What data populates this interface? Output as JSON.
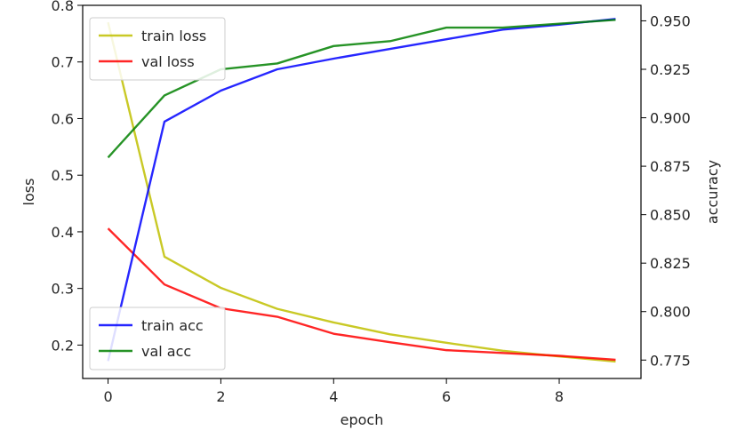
{
  "chart_data": {
    "type": "line",
    "xlabel": "epoch",
    "ylabel_left": "loss",
    "ylabel_right": "accuracy",
    "x": [
      0,
      1,
      2,
      3,
      4,
      5,
      6,
      7,
      8,
      9
    ],
    "xlim": [
      -0.45,
      9.45
    ],
    "ylim_left": [
      0.141,
      0.8
    ],
    "ylim_right": [
      0.7655,
      0.958
    ],
    "xticks": [
      0,
      2,
      4,
      6,
      8
    ],
    "xtick_labels": [
      "0",
      "2",
      "4",
      "6",
      "8"
    ],
    "yticks_left": [
      0.2,
      0.3,
      0.4,
      0.5,
      0.6,
      0.7,
      0.8
    ],
    "ytick_labels_left": [
      "0.2",
      "0.3",
      "0.4",
      "0.5",
      "0.6",
      "0.7",
      "0.8"
    ],
    "yticks_right": [
      0.775,
      0.8,
      0.825,
      0.85,
      0.875,
      0.9,
      0.925,
      0.95
    ],
    "ytick_labels_right": [
      "0.775",
      "0.800",
      "0.825",
      "0.850",
      "0.875",
      "0.900",
      "0.925",
      "0.950"
    ],
    "grid": false,
    "series": [
      {
        "name": "train loss",
        "axis": "left",
        "color": "#bfbf00",
        "values": [
          0.77,
          0.356,
          0.301,
          0.264,
          0.24,
          0.219,
          0.204,
          0.19,
          0.18,
          0.171
        ]
      },
      {
        "name": "val loss",
        "axis": "left",
        "color": "#ff0000",
        "values": [
          0.406,
          0.307,
          0.265,
          0.25,
          0.22,
          0.205,
          0.191,
          0.186,
          0.181,
          0.174
        ]
      },
      {
        "name": "train acc",
        "axis": "right",
        "color": "#0000ff",
        "values": [
          0.7745,
          0.898,
          0.914,
          0.925,
          0.9305,
          0.9355,
          0.9405,
          0.9455,
          0.948,
          0.951
        ]
      },
      {
        "name": "val acc",
        "axis": "right",
        "color": "#008000",
        "values": [
          0.8795,
          0.9115,
          0.925,
          0.928,
          0.937,
          0.9395,
          0.9465,
          0.9465,
          0.9485,
          0.9505
        ]
      }
    ],
    "legends": [
      {
        "placement": "upper-left",
        "entries": [
          "train loss",
          "val loss"
        ]
      },
      {
        "placement": "lower-left",
        "entries": [
          "train acc",
          "val acc"
        ]
      }
    ]
  }
}
